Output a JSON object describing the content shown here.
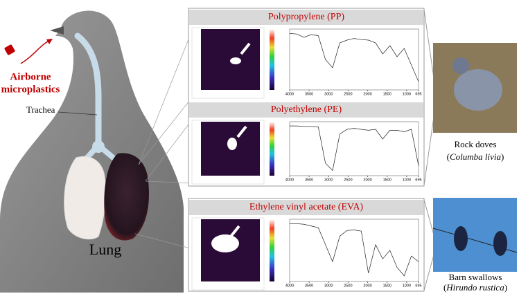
{
  "left": {
    "source_label": [
      "Airborne",
      "microplastics"
    ],
    "trachea_label": "Trachea",
    "lung_label": "Lung"
  },
  "panels": [
    {
      "title": "Polypropylene (PP)"
    },
    {
      "title": "Polyethylene (PE)"
    },
    {
      "title": "Ethylene vinyl acetate (EVA)"
    }
  ],
  "spectrum_xticks": [
    4000,
    3500,
    3000,
    2500,
    2000,
    1500,
    1000,
    695
  ],
  "birds": [
    {
      "common": "Rock doves",
      "scientific": [
        "(",
        "Columba livia",
        ")"
      ]
    },
    {
      "common": "Barn swallows",
      "scientific": [
        "(",
        "Hirundo rustica",
        ")"
      ]
    }
  ]
}
